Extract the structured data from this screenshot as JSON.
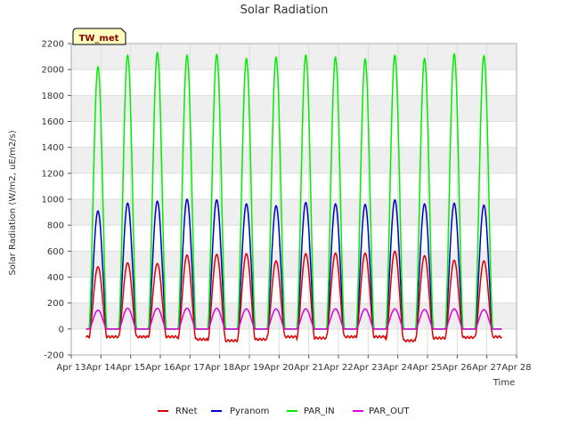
{
  "chart_data": {
    "type": "line",
    "title": "Solar Radiation",
    "xlabel": "Time",
    "ylabel": "Solar Radiation (W/m2, uE/m2/s)",
    "station_badge": "TW_met",
    "ylim": [
      -200,
      2200
    ],
    "yticks": [
      -200,
      0,
      200,
      400,
      600,
      800,
      1000,
      1200,
      1400,
      1600,
      1800,
      2000,
      2200
    ],
    "xlim": [
      13,
      28
    ],
    "xticks": [
      {
        "x": 13,
        "label": "Apr 13"
      },
      {
        "x": 14,
        "label": "Apr 14"
      },
      {
        "x": 15,
        "label": "Apr 15"
      },
      {
        "x": 16,
        "label": "Apr 16"
      },
      {
        "x": 17,
        "label": "Apr 17"
      },
      {
        "x": 18,
        "label": "Apr 18"
      },
      {
        "x": 19,
        "label": "Apr 19"
      },
      {
        "x": 20,
        "label": "Apr 20"
      },
      {
        "x": 21,
        "label": "Apr 21"
      },
      {
        "x": 22,
        "label": "Apr 22"
      },
      {
        "x": 23,
        "label": "Apr 23"
      },
      {
        "x": 24,
        "label": "Apr 24"
      },
      {
        "x": 25,
        "label": "Apr 25"
      },
      {
        "x": 26,
        "label": "Apr 26"
      },
      {
        "x": 27,
        "label": "Apr 27"
      },
      {
        "x": 28,
        "label": "Apr 28"
      }
    ],
    "data_range": [
      13.5,
      27.5
    ],
    "day_centers": [
      13.9,
      14.9,
      15.9,
      16.9,
      17.9,
      18.9,
      19.9,
      20.9,
      21.9,
      22.9,
      23.9,
      24.9,
      25.9,
      26.9
    ],
    "grid": true,
    "legend_position": "bottom",
    "series": [
      {
        "name": "RNet",
        "color": "#dd0000",
        "daily_peaks": [
          480,
          510,
          505,
          570,
          575,
          580,
          525,
          580,
          585,
          585,
          600,
          565,
          530,
          525
        ],
        "night_values": [
          -60,
          -60,
          -60,
          -80,
          -90,
          -80,
          -60,
          -70,
          -60,
          -60,
          -90,
          -70,
          -65,
          -60
        ]
      },
      {
        "name": "Pyranom",
        "color": "#0000cc",
        "daily_peaks": [
          910,
          970,
          985,
          1000,
          995,
          965,
          950,
          975,
          965,
          960,
          995,
          965,
          970,
          955
        ],
        "night_values": [
          0,
          0,
          0,
          0,
          0,
          0,
          0,
          0,
          0,
          0,
          0,
          0,
          0,
          0
        ]
      },
      {
        "name": "PAR_IN",
        "color": "#00ee00",
        "daily_peaks": [
          2020,
          2110,
          2130,
          2110,
          2115,
          2085,
          2095,
          2110,
          2095,
          2080,
          2110,
          2085,
          2120,
          2105
        ],
        "night_values": [
          0,
          0,
          0,
          0,
          0,
          0,
          0,
          0,
          0,
          0,
          0,
          0,
          0,
          0
        ]
      },
      {
        "name": "PAR_OUT",
        "color": "#dd00dd",
        "daily_peaks": [
          145,
          160,
          160,
          160,
          160,
          155,
          155,
          155,
          155,
          155,
          155,
          150,
          155,
          150
        ],
        "night_values": [
          0,
          0,
          0,
          0,
          0,
          0,
          0,
          0,
          0,
          0,
          0,
          0,
          0,
          0
        ]
      }
    ]
  }
}
